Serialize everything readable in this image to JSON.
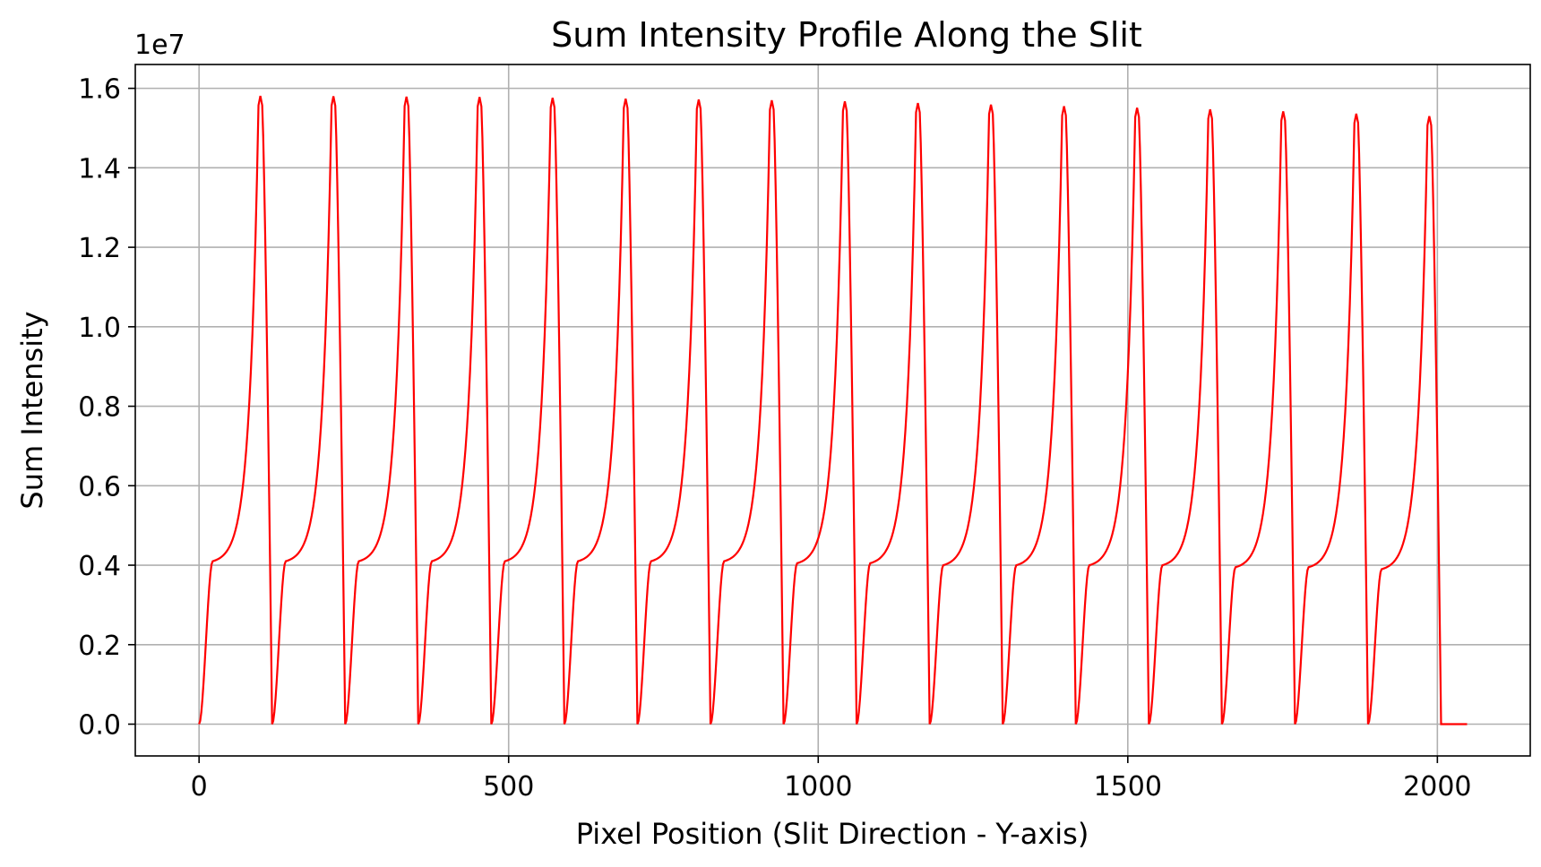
{
  "chart_data": {
    "type": "line",
    "title": "Sum Intensity Profile Along the Slit",
    "xlabel": "Pixel Position (Slit Direction - Y-axis)",
    "ylabel": "Sum Intensity",
    "y_offset_label": "1e7",
    "y_scale": 10000000,
    "xlim": [
      -103,
      2150
    ],
    "ylim": [
      -0.08,
      1.66
    ],
    "x_ticks": [
      0,
      500,
      1000,
      1500,
      2000
    ],
    "x_tick_labels": [
      "0",
      "500",
      "1000",
      "1500",
      "2000"
    ],
    "y_ticks": [
      0.0,
      0.2,
      0.4,
      0.6,
      0.8,
      1.0,
      1.2,
      1.4,
      1.6
    ],
    "y_tick_labels": [
      "0.0",
      "0.2",
      "0.4",
      "0.6",
      "0.8",
      "1.0",
      "1.2",
      "1.4",
      "1.6"
    ],
    "grid": true,
    "legend": "none",
    "line_color": "#ff0000",
    "series": [
      {
        "cycle_start": [
          0,
          118,
          236,
          354,
          472,
          590,
          708,
          826,
          944,
          1062,
          1180,
          1298,
          1416,
          1534,
          1652,
          1770,
          1888
        ],
        "cycle_shoulder_x": [
          22,
          140,
          258,
          376,
          494,
          612,
          730,
          848,
          966,
          1084,
          1202,
          1320,
          1438,
          1556,
          1674,
          1792,
          1910
        ],
        "cycle_shoulder_y": [
          0.41,
          0.41,
          0.41,
          0.41,
          0.41,
          0.41,
          0.41,
          0.41,
          0.405,
          0.405,
          0.4,
          0.4,
          0.4,
          0.4,
          0.395,
          0.395,
          0.39
        ],
        "cycle_peak_x": [
          99,
          217,
          335,
          453,
          571,
          689,
          807,
          925,
          1043,
          1161,
          1279,
          1397,
          1515,
          1633,
          1751,
          1869,
          1987
        ],
        "cycle_peak_y": [
          1.581,
          1.58,
          1.579,
          1.578,
          1.576,
          1.574,
          1.572,
          1.57,
          1.567,
          1.563,
          1.559,
          1.555,
          1.551,
          1.547,
          1.542,
          1.536,
          1.53
        ],
        "cycle_end": [
          118,
          236,
          354,
          472,
          590,
          708,
          826,
          944,
          1062,
          1180,
          1298,
          1416,
          1534,
          1652,
          1770,
          1888,
          2006
        ],
        "tail_x": [
          2006,
          2048
        ],
        "tail_y": [
          0.0,
          0.0
        ]
      }
    ]
  }
}
